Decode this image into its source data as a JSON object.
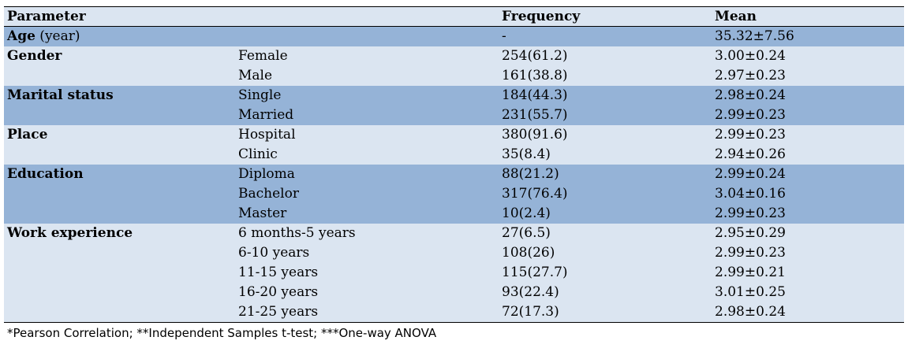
{
  "table": {
    "headers": [
      "Parameter",
      "",
      "Frequency",
      "Mean"
    ],
    "rows": [
      {
        "param_bold": "Age",
        "param_rest": " (year)",
        "sub": "",
        "freq": "-",
        "mean": "35.32±7.56",
        "shade": "dark"
      },
      {
        "param_bold": "Gender",
        "param_rest": "",
        "sub": "Female",
        "freq": "254(61.2)",
        "mean": "3.00±0.24",
        "shade": "light"
      },
      {
        "param_bold": "",
        "param_rest": "",
        "sub": "Male",
        "freq": "161(38.8)",
        "mean": "2.97±0.23",
        "shade": "light"
      },
      {
        "param_bold": "Marital status",
        "param_rest": "",
        "sub": "Single",
        "freq": "184(44.3)",
        "mean": "2.98±0.24",
        "shade": "dark"
      },
      {
        "param_bold": "",
        "param_rest": "",
        "sub": "Married",
        "freq": "231(55.7)",
        "mean": "2.99±0.23",
        "shade": "dark"
      },
      {
        "param_bold": "Place",
        "param_rest": "",
        "sub": "Hospital",
        "freq": "380(91.6)",
        "mean": "2.99±0.23",
        "shade": "light"
      },
      {
        "param_bold": "",
        "param_rest": "",
        "sub": "Clinic",
        "freq": "35(8.4)",
        "mean": "2.94±0.26",
        "shade": "light"
      },
      {
        "param_bold": "Education",
        "param_rest": "",
        "sub": "Diploma",
        "freq": "88(21.2)",
        "mean": "2.99±0.24",
        "shade": "dark"
      },
      {
        "param_bold": "",
        "param_rest": "",
        "sub": "Bachelor",
        "freq": "317(76.4)",
        "mean": "3.04±0.16",
        "shade": "dark"
      },
      {
        "param_bold": "",
        "param_rest": "",
        "sub": "Master",
        "freq": "10(2.4)",
        "mean": "2.99±0.23",
        "shade": "dark"
      },
      {
        "param_bold": "Work experience",
        "param_rest": "",
        "sub": "6 months-5 years",
        "freq": "27(6.5)",
        "mean": "2.95±0.29",
        "shade": "light"
      },
      {
        "param_bold": "",
        "param_rest": "",
        "sub": "6-10 years",
        "freq": "108(26)",
        "mean": "2.99±0.23",
        "shade": "light"
      },
      {
        "param_bold": "",
        "param_rest": "",
        "sub": "11-15 years",
        "freq": "115(27.7)",
        "mean": "2.99±0.21",
        "shade": "light"
      },
      {
        "param_bold": "",
        "param_rest": "",
        "sub": "16-20 years",
        "freq": "93(22.4)",
        "mean": "3.01±0.25",
        "shade": "light"
      },
      {
        "param_bold": "",
        "param_rest": "",
        "sub": "21-25 years",
        "freq": "72(17.3)",
        "mean": "2.98±0.24",
        "shade": "light"
      }
    ]
  },
  "footnote": "*Pearson Correlation; **Independent Samples t-test; ***One-way ANOVA",
  "colors": {
    "light_row": "#dbe5f1",
    "dark_row": "#95b3d7"
  }
}
